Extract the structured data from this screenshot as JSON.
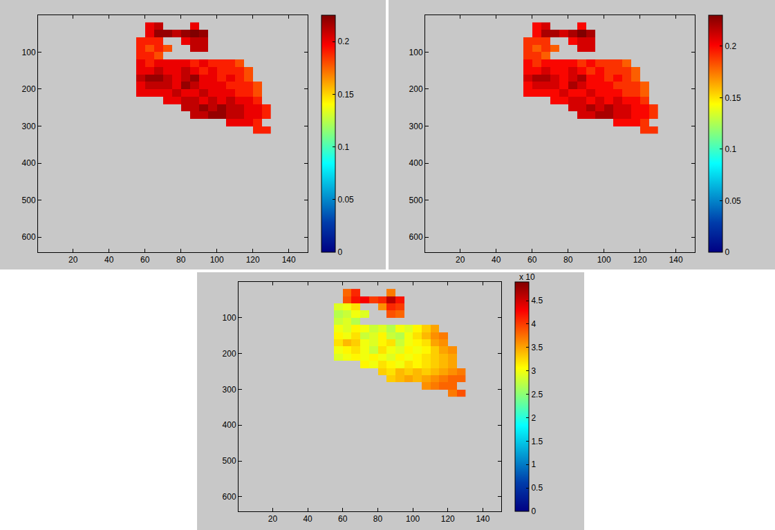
{
  "chart_data": [
    {
      "type": "heatmap",
      "color": "Jet",
      "x": [
        52.5,
        57.5,
        62.5,
        67.5,
        72.5,
        77.5,
        82.5,
        87.5,
        92.5,
        97.5,
        102.5,
        107.5,
        112.5,
        117.5,
        122.5,
        127.5
      ],
      "y": [
        30,
        50,
        70,
        90,
        110,
        130,
        150,
        170,
        190,
        210,
        230,
        250,
        270,
        290,
        310
      ],
      "z": [
        [
          null,
          null,
          0.2,
          0.21,
          null,
          null,
          null,
          0.2,
          null,
          null,
          null,
          null,
          null,
          null,
          null,
          null
        ],
        [
          null,
          null,
          0.2,
          0.22,
          0.22,
          0.21,
          0.22,
          0.23,
          0.22,
          null,
          null,
          null,
          null,
          null,
          null,
          null
        ],
        [
          null,
          0.19,
          0.19,
          0.19,
          null,
          null,
          0.2,
          0.21,
          0.21,
          null,
          null,
          null,
          null,
          null,
          null,
          null
        ],
        [
          null,
          0.19,
          0.18,
          0.19,
          0.18,
          null,
          null,
          0.21,
          0.21,
          null,
          null,
          null,
          null,
          null,
          null,
          null
        ],
        [
          null,
          0.19,
          0.19,
          0.18,
          null,
          null,
          null,
          null,
          null,
          null,
          null,
          null,
          null,
          null,
          null,
          null
        ],
        [
          null,
          0.2,
          0.19,
          0.2,
          0.2,
          0.2,
          0.2,
          0.19,
          0.2,
          0.19,
          0.19,
          0.19,
          0.18,
          null,
          null,
          null
        ],
        [
          null,
          0.2,
          0.2,
          0.21,
          0.2,
          0.2,
          0.21,
          0.2,
          0.19,
          0.2,
          0.19,
          0.19,
          0.19,
          0.18,
          null,
          null
        ],
        [
          null,
          0.21,
          0.22,
          0.22,
          0.21,
          0.2,
          0.21,
          0.22,
          0.2,
          0.2,
          0.19,
          0.2,
          0.19,
          0.18,
          null,
          null
        ],
        [
          null,
          0.2,
          0.21,
          0.21,
          0.21,
          0.2,
          0.22,
          0.21,
          0.2,
          0.2,
          0.2,
          0.19,
          0.19,
          0.19,
          0.18,
          null
        ],
        [
          null,
          0.2,
          0.2,
          0.2,
          0.2,
          0.21,
          0.2,
          0.2,
          0.21,
          0.2,
          0.2,
          0.2,
          0.19,
          0.19,
          0.18,
          null
        ],
        [
          null,
          null,
          null,
          null,
          0.2,
          0.2,
          0.21,
          0.21,
          0.2,
          0.21,
          0.2,
          0.21,
          0.2,
          0.2,
          0.19,
          null
        ],
        [
          null,
          null,
          null,
          null,
          null,
          null,
          0.21,
          0.21,
          0.22,
          0.21,
          0.22,
          0.21,
          0.21,
          0.2,
          0.2,
          0.19
        ],
        [
          null,
          null,
          null,
          null,
          null,
          null,
          null,
          0.21,
          0.21,
          0.22,
          0.22,
          0.21,
          0.21,
          0.2,
          0.2,
          0.19
        ],
        [
          null,
          null,
          null,
          null,
          null,
          null,
          null,
          null,
          null,
          null,
          null,
          0.2,
          0.2,
          0.2,
          0.19,
          null
        ],
        [
          null,
          null,
          null,
          null,
          null,
          null,
          null,
          null,
          null,
          null,
          null,
          null,
          null,
          null,
          0.19,
          0.19
        ]
      ],
      "xlim": [
        0.5,
        150.5
      ],
      "ylim": [
        640.5,
        0.5
      ],
      "xticks": [
        20,
        40,
        60,
        80,
        100,
        120,
        140
      ],
      "yticks": [
        100,
        200,
        300,
        400,
        500,
        600
      ],
      "colorbar_range": [
        0,
        0.225
      ],
      "colorbar_ticks": [
        0,
        0.05,
        0.1,
        0.15,
        0.2
      ]
    },
    {
      "type": "heatmap",
      "color": "Jet",
      "x": [
        52.5,
        57.5,
        62.5,
        67.5,
        72.5,
        77.5,
        82.5,
        87.5,
        92.5,
        97.5,
        102.5,
        107.5,
        112.5,
        117.5,
        122.5,
        127.5
      ],
      "y": [
        30,
        50,
        70,
        90,
        110,
        130,
        150,
        170,
        190,
        210,
        230,
        250,
        270,
        290,
        310
      ],
      "z": [
        [
          null,
          null,
          0.2,
          0.21,
          null,
          null,
          null,
          0.2,
          null,
          null,
          null,
          null,
          null,
          null,
          null,
          null
        ],
        [
          null,
          null,
          0.2,
          0.22,
          0.22,
          0.21,
          0.22,
          0.23,
          0.22,
          null,
          null,
          null,
          null,
          null,
          null,
          null
        ],
        [
          null,
          0.19,
          0.19,
          0.19,
          null,
          null,
          0.2,
          0.21,
          0.21,
          null,
          null,
          null,
          null,
          null,
          null,
          null
        ],
        [
          null,
          0.19,
          0.18,
          0.19,
          0.18,
          null,
          null,
          0.21,
          0.21,
          null,
          null,
          null,
          null,
          null,
          null,
          null
        ],
        [
          null,
          0.19,
          0.19,
          0.18,
          null,
          null,
          null,
          null,
          null,
          null,
          null,
          null,
          null,
          null,
          null,
          null
        ],
        [
          null,
          0.2,
          0.19,
          0.2,
          0.2,
          0.2,
          0.2,
          0.19,
          0.2,
          0.19,
          0.19,
          0.19,
          0.18,
          null,
          null,
          null
        ],
        [
          null,
          0.2,
          0.2,
          0.21,
          0.2,
          0.2,
          0.21,
          0.2,
          0.19,
          0.2,
          0.19,
          0.19,
          0.19,
          0.18,
          null,
          null
        ],
        [
          null,
          0.21,
          0.22,
          0.22,
          0.21,
          0.2,
          0.21,
          0.22,
          0.2,
          0.2,
          0.19,
          0.2,
          0.19,
          0.18,
          null,
          null
        ],
        [
          null,
          0.2,
          0.21,
          0.21,
          0.21,
          0.2,
          0.22,
          0.21,
          0.2,
          0.2,
          0.2,
          0.19,
          0.19,
          0.19,
          0.18,
          null
        ],
        [
          null,
          0.2,
          0.2,
          0.2,
          0.2,
          0.21,
          0.2,
          0.2,
          0.21,
          0.2,
          0.2,
          0.2,
          0.19,
          0.19,
          0.18,
          null
        ],
        [
          null,
          null,
          null,
          null,
          0.2,
          0.2,
          0.21,
          0.21,
          0.2,
          0.21,
          0.2,
          0.21,
          0.2,
          0.2,
          0.19,
          null
        ],
        [
          null,
          null,
          null,
          null,
          null,
          null,
          0.21,
          0.21,
          0.22,
          0.21,
          0.22,
          0.21,
          0.21,
          0.2,
          0.2,
          0.19
        ],
        [
          null,
          null,
          null,
          null,
          null,
          null,
          null,
          0.21,
          0.21,
          0.22,
          0.22,
          0.21,
          0.21,
          0.2,
          0.2,
          0.19
        ],
        [
          null,
          null,
          null,
          null,
          null,
          null,
          null,
          null,
          null,
          null,
          null,
          0.2,
          0.2,
          0.2,
          0.19,
          null
        ],
        [
          null,
          null,
          null,
          null,
          null,
          null,
          null,
          null,
          null,
          null,
          null,
          null,
          null,
          null,
          0.19,
          0.19
        ]
      ],
      "xlim": [
        0.5,
        150.5
      ],
      "ylim": [
        640.5,
        0.5
      ],
      "xticks": [
        20,
        40,
        60,
        80,
        100,
        120,
        140
      ],
      "yticks": [
        100,
        200,
        300,
        400,
        500,
        600
      ],
      "colorbar_range": [
        0,
        0.23
      ],
      "colorbar_ticks": [
        0,
        0.05,
        0.1,
        0.15,
        0.2
      ]
    },
    {
      "type": "heatmap",
      "color": "Jet",
      "x": [
        52.5,
        57.5,
        62.5,
        67.5,
        72.5,
        77.5,
        82.5,
        87.5,
        92.5,
        97.5,
        102.5,
        107.5,
        112.5,
        117.5,
        122.5,
        127.5
      ],
      "y": [
        30,
        50,
        70,
        90,
        110,
        130,
        150,
        170,
        190,
        210,
        230,
        250,
        270,
        290,
        310
      ],
      "z": [
        [
          null,
          null,
          3.8,
          4.1,
          null,
          null,
          null,
          3.7,
          null,
          null,
          null,
          null,
          null,
          null,
          null,
          null
        ],
        [
          null,
          null,
          3.9,
          4.2,
          4.3,
          4.0,
          4.1,
          4.6,
          4.2,
          null,
          null,
          null,
          null,
          null,
          null,
          null
        ],
        [
          null,
          2.9,
          3.0,
          3.2,
          null,
          null,
          3.6,
          4.1,
          4.0,
          null,
          null,
          null,
          null,
          null,
          null,
          null
        ],
        [
          null,
          2.7,
          2.8,
          3.0,
          2.9,
          null,
          null,
          3.9,
          3.8,
          null,
          null,
          null,
          null,
          null,
          null,
          null
        ],
        [
          null,
          2.8,
          2.9,
          2.7,
          null,
          null,
          null,
          null,
          null,
          null,
          null,
          null,
          null,
          null,
          null,
          null
        ],
        [
          null,
          3.0,
          2.9,
          3.1,
          3.0,
          2.8,
          2.9,
          2.7,
          3.0,
          2.9,
          3.1,
          3.3,
          3.5,
          null,
          null,
          null
        ],
        [
          null,
          3.1,
          3.0,
          3.2,
          2.8,
          2.9,
          3.1,
          2.8,
          2.7,
          3.0,
          3.2,
          3.4,
          3.6,
          3.7,
          null,
          null
        ],
        [
          null,
          3.2,
          3.4,
          3.3,
          3.0,
          2.9,
          3.1,
          3.2,
          2.8,
          3.0,
          3.1,
          3.2,
          3.5,
          3.6,
          null,
          null
        ],
        [
          null,
          3.0,
          3.1,
          3.2,
          3.0,
          2.8,
          3.2,
          3.0,
          2.9,
          3.1,
          3.0,
          3.1,
          3.3,
          3.5,
          3.6,
          null
        ],
        [
          null,
          2.9,
          3.0,
          3.1,
          3.0,
          3.1,
          3.0,
          2.9,
          3.1,
          3.0,
          3.1,
          3.2,
          3.3,
          3.4,
          3.5,
          null
        ],
        [
          null,
          null,
          null,
          null,
          3.1,
          3.0,
          3.2,
          3.1,
          3.0,
          3.2,
          3.1,
          3.2,
          3.3,
          3.4,
          3.5,
          null
        ],
        [
          null,
          null,
          null,
          null,
          null,
          null,
          3.3,
          3.2,
          3.4,
          3.3,
          3.4,
          3.3,
          3.4,
          3.5,
          3.6,
          3.7
        ],
        [
          null,
          null,
          null,
          null,
          null,
          null,
          null,
          3.3,
          3.4,
          3.5,
          3.4,
          3.5,
          3.6,
          3.7,
          3.8,
          3.8
        ],
        [
          null,
          null,
          null,
          null,
          null,
          null,
          null,
          null,
          null,
          null,
          null,
          3.6,
          3.7,
          3.8,
          3.8,
          null
        ],
        [
          null,
          null,
          null,
          null,
          null,
          null,
          null,
          null,
          null,
          null,
          null,
          null,
          null,
          null,
          3.7,
          3.9
        ]
      ],
      "xlim": [
        0.5,
        150.5
      ],
      "ylim": [
        640.5,
        0.5
      ],
      "xticks": [
        20,
        40,
        60,
        80,
        100,
        120,
        140
      ],
      "yticks": [
        100,
        200,
        300,
        400,
        500,
        600
      ],
      "colorbar_range": [
        0,
        4.9
      ],
      "colorbar_ticks": [
        0,
        0.5,
        1,
        1.5,
        2,
        2.5,
        3,
        3.5,
        4,
        4.5
      ],
      "colorbar_title": "x 10"
    }
  ]
}
